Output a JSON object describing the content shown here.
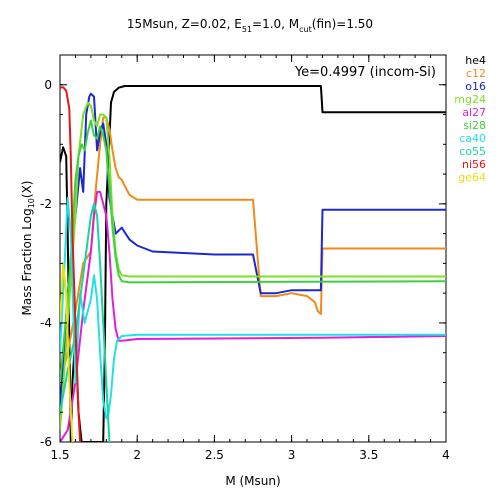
{
  "chart_data": {
    "type": "line",
    "title_parts": {
      "a": "15Msun, Z=0.02, E",
      "a_sub": "51",
      "b": "=1.0, M",
      "b_sub": "cut",
      "c": "(fin)=1.50"
    },
    "xlabel": "M (Msun)",
    "ylabel_parts": {
      "main": "Mass Fraction Log",
      "sub": "10",
      "tail": "(X)"
    },
    "annotation": "Ye=0.4997 (incom-Si)",
    "xlim": [
      1.5,
      4.0
    ],
    "ylim": [
      -6,
      0.5
    ],
    "x_ticks": [
      1.5,
      2.0,
      2.5,
      3.0,
      3.5,
      4.0
    ],
    "x_tick_labels": [
      "1.5",
      "2",
      "2.5",
      "3",
      "3.5",
      "4"
    ],
    "y_ticks": [
      0,
      -2,
      -4,
      -6
    ],
    "y_tick_labels": [
      "0",
      "-2",
      "-4",
      "-6"
    ],
    "series": [
      {
        "name": "he4",
        "color": "#000000",
        "points": [
          [
            1.5,
            -1.3
          ],
          [
            1.52,
            -1.05
          ],
          [
            1.54,
            -1.2
          ],
          [
            1.55,
            -2.5
          ],
          [
            1.57,
            -6
          ],
          [
            1.58,
            -5.0
          ],
          [
            1.6,
            -4.2
          ],
          [
            1.62,
            -5.5
          ],
          [
            1.64,
            -6
          ],
          [
            1.78,
            -6
          ],
          [
            1.79,
            -4.5
          ],
          [
            1.8,
            -2.0
          ],
          [
            1.82,
            -0.9
          ],
          [
            1.83,
            -0.3
          ],
          [
            1.85,
            -0.12
          ],
          [
            1.88,
            -0.05
          ],
          [
            1.92,
            -0.02
          ],
          [
            3.19,
            -0.02
          ],
          [
            3.2,
            -0.46
          ],
          [
            4.0,
            -0.46
          ]
        ]
      },
      {
        "name": "c12",
        "color": "#f08a1c",
        "points": [
          [
            1.5,
            -5.0
          ],
          [
            1.55,
            -4.5
          ],
          [
            1.6,
            -3.8
          ],
          [
            1.65,
            -3.0
          ],
          [
            1.7,
            -2.8
          ],
          [
            1.73,
            -1.8
          ],
          [
            1.76,
            -1.0
          ],
          [
            1.78,
            -0.55
          ],
          [
            1.8,
            -0.55
          ],
          [
            1.82,
            -0.75
          ],
          [
            1.84,
            -1.1
          ],
          [
            1.86,
            -1.4
          ],
          [
            1.88,
            -1.55
          ],
          [
            1.9,
            -1.6
          ],
          [
            1.92,
            -1.7
          ],
          [
            1.95,
            -1.85
          ],
          [
            2.0,
            -1.93
          ],
          [
            2.75,
            -1.93
          ],
          [
            2.8,
            -3.55
          ],
          [
            2.9,
            -3.55
          ],
          [
            3.0,
            -3.5
          ],
          [
            3.1,
            -3.55
          ],
          [
            3.15,
            -3.65
          ],
          [
            3.17,
            -3.8
          ],
          [
            3.19,
            -3.85
          ],
          [
            3.2,
            -2.75
          ],
          [
            4.0,
            -2.75
          ]
        ]
      },
      {
        "name": "o16",
        "color": "#1c28d0",
        "points": [
          [
            1.5,
            -5.5
          ],
          [
            1.55,
            -3.5
          ],
          [
            1.6,
            -2.2
          ],
          [
            1.63,
            -1.4
          ],
          [
            1.65,
            -1.8
          ],
          [
            1.67,
            -0.5
          ],
          [
            1.69,
            -0.2
          ],
          [
            1.7,
            -0.15
          ],
          [
            1.72,
            -0.2
          ],
          [
            1.74,
            -1.1
          ],
          [
            1.76,
            -0.8
          ],
          [
            1.78,
            -0.65
          ],
          [
            1.8,
            -1.0
          ],
          [
            1.82,
            -1.9
          ],
          [
            1.84,
            -2.2
          ],
          [
            1.86,
            -2.5
          ],
          [
            1.88,
            -2.45
          ],
          [
            1.9,
            -2.4
          ],
          [
            1.95,
            -2.6
          ],
          [
            2.0,
            -2.7
          ],
          [
            2.1,
            -2.8
          ],
          [
            2.5,
            -2.85
          ],
          [
            2.75,
            -2.85
          ],
          [
            2.8,
            -3.5
          ],
          [
            2.9,
            -3.5
          ],
          [
            3.0,
            -3.45
          ],
          [
            3.19,
            -3.45
          ],
          [
            3.2,
            -2.1
          ],
          [
            4.0,
            -2.1
          ]
        ]
      },
      {
        "name": "mg24",
        "color": "#7ce024",
        "points": [
          [
            1.5,
            -5.8
          ],
          [
            1.55,
            -4.0
          ],
          [
            1.6,
            -2.2
          ],
          [
            1.62,
            -1.2
          ],
          [
            1.65,
            -0.5
          ],
          [
            1.68,
            -0.3
          ],
          [
            1.7,
            -0.35
          ],
          [
            1.72,
            -0.6
          ],
          [
            1.74,
            -0.7
          ],
          [
            1.76,
            -0.5
          ],
          [
            1.78,
            -0.5
          ],
          [
            1.8,
            -0.55
          ],
          [
            1.82,
            -1.2
          ],
          [
            1.84,
            -2.2
          ],
          [
            1.86,
            -2.8
          ],
          [
            1.88,
            -3.1
          ],
          [
            1.9,
            -3.2
          ],
          [
            1.95,
            -3.22
          ],
          [
            4.0,
            -3.22
          ]
        ]
      },
      {
        "name": "al27",
        "color": "#e020d8",
        "points": [
          [
            1.5,
            -6
          ],
          [
            1.55,
            -5.8
          ],
          [
            1.6,
            -5.0
          ],
          [
            1.65,
            -3.8
          ],
          [
            1.7,
            -2.8
          ],
          [
            1.72,
            -2.2
          ],
          [
            1.74,
            -1.8
          ],
          [
            1.76,
            -1.8
          ],
          [
            1.78,
            -2.0
          ],
          [
            1.8,
            -2.2
          ],
          [
            1.82,
            -2.8
          ],
          [
            1.84,
            -3.6
          ],
          [
            1.86,
            -4.1
          ],
          [
            1.88,
            -4.3
          ],
          [
            1.9,
            -4.3
          ],
          [
            2.0,
            -4.27
          ],
          [
            3.2,
            -4.25
          ],
          [
            4.0,
            -4.22
          ]
        ]
      },
      {
        "name": "si28",
        "color": "#3ed03e",
        "points": [
          [
            1.5,
            -5.0
          ],
          [
            1.55,
            -3.6
          ],
          [
            1.58,
            -2.5
          ],
          [
            1.6,
            -1.6
          ],
          [
            1.62,
            -1.2
          ],
          [
            1.64,
            -1.0
          ],
          [
            1.66,
            -1.1
          ],
          [
            1.68,
            -0.8
          ],
          [
            1.7,
            -0.6
          ],
          [
            1.72,
            -0.85
          ],
          [
            1.74,
            -0.9
          ],
          [
            1.76,
            -0.7
          ],
          [
            1.78,
            -0.85
          ],
          [
            1.8,
            -1.1
          ],
          [
            1.82,
            -1.7
          ],
          [
            1.84,
            -2.4
          ],
          [
            1.86,
            -2.9
          ],
          [
            1.88,
            -3.2
          ],
          [
            1.9,
            -3.3
          ],
          [
            1.95,
            -3.32
          ],
          [
            4.0,
            -3.3
          ]
        ]
      },
      {
        "name": "ca40",
        "color": "#22e0e6",
        "points": [
          [
            1.5,
            -4.5
          ],
          [
            1.53,
            -3.0
          ],
          [
            1.55,
            -1.9
          ],
          [
            1.57,
            -2.5
          ],
          [
            1.6,
            -5.0
          ],
          [
            1.63,
            -3.5
          ],
          [
            1.66,
            -4.0
          ],
          [
            1.7,
            -3.6
          ],
          [
            1.72,
            -3.2
          ],
          [
            1.74,
            -3.6
          ],
          [
            1.76,
            -4.5
          ],
          [
            1.78,
            -5.3
          ],
          [
            1.8,
            -5.6
          ],
          [
            1.81,
            -5.6
          ],
          [
            1.83,
            -5.2
          ],
          [
            1.85,
            -4.6
          ],
          [
            1.87,
            -4.3
          ],
          [
            1.9,
            -4.22
          ],
          [
            2.0,
            -4.2
          ],
          [
            4.0,
            -4.2
          ]
        ]
      },
      {
        "name": "co55",
        "color": "#16d6a0",
        "points": [
          [
            1.5,
            -5.5
          ],
          [
            1.55,
            -4.8
          ],
          [
            1.6,
            -4.2
          ],
          [
            1.65,
            -3.2
          ],
          [
            1.68,
            -2.6
          ],
          [
            1.7,
            -2.2
          ],
          [
            1.72,
            -2.0
          ],
          [
            1.74,
            -2.2
          ],
          [
            1.76,
            -3.0
          ],
          [
            1.78,
            -4.0
          ],
          [
            1.8,
            -5.0
          ],
          [
            1.82,
            -6
          ]
        ]
      },
      {
        "name": "ni56",
        "color": "#e41818",
        "points": [
          [
            1.5,
            -0.05
          ],
          [
            1.52,
            -0.04
          ],
          [
            1.54,
            -0.1
          ],
          [
            1.56,
            -0.4
          ],
          [
            1.57,
            -1.2
          ],
          [
            1.58,
            -2.5
          ],
          [
            1.6,
            -4.0
          ],
          [
            1.62,
            -5.5
          ],
          [
            1.63,
            -6
          ]
        ]
      },
      {
        "name": "ge64",
        "color": "#e8e010",
        "points": [
          [
            1.5,
            -4.0
          ],
          [
            1.52,
            -3.0
          ],
          [
            1.54,
            -3.5
          ],
          [
            1.56,
            -5.0
          ],
          [
            1.58,
            -6
          ]
        ]
      }
    ],
    "legend_position": "right-outside",
    "grid": false
  }
}
